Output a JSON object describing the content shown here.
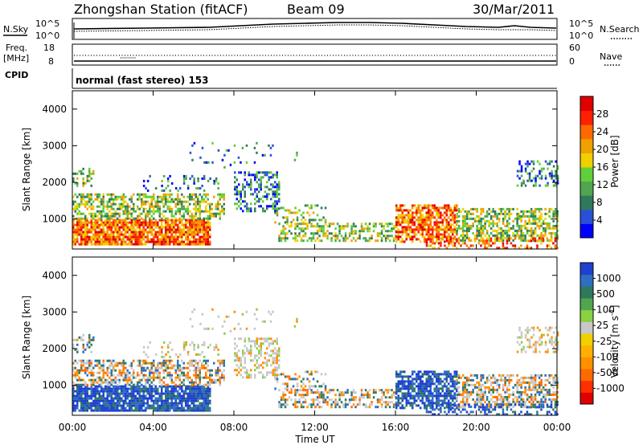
{
  "header": {
    "title": "Zhongshan Station (fitACF)",
    "beam": "Beam 09",
    "date": "30/Mar/2011"
  },
  "noise_panel": {
    "left_label": "N.Sky",
    "left_ticks": [
      "10^5",
      "10^0"
    ],
    "right_label": "N.Search",
    "right_ticks": [
      "10^5",
      "10^0"
    ]
  },
  "freq_panel": {
    "left_label_1": "Freq.",
    "left_label_2": "[MHz]",
    "left_ticks": [
      "18",
      "8"
    ],
    "right_label": "Nave",
    "right_ticks": [
      "60",
      "0"
    ]
  },
  "cpid": {
    "label": "CPID",
    "mode": "normal (fast stereo) 153"
  },
  "x_axis": {
    "label": "Time UT",
    "ticks": [
      "00:00",
      "04:00",
      "08:00",
      "12:00",
      "16:00",
      "20:00",
      "00:00"
    ]
  },
  "chart_data": [
    {
      "type": "heatmap",
      "quantity": "power",
      "ylabel": "Slant Range [km]",
      "ylim": [
        180,
        4500
      ],
      "yticks": [
        "4000",
        "3000",
        "2000",
        "1000"
      ],
      "colorbar_label": "Power [dB]",
      "colorbar_ticks": [
        "28",
        "24",
        "20",
        "16",
        "12",
        "8",
        "4"
      ],
      "colorbar_colors": [
        "#0000ff",
        "#2b50d8",
        "#2f7a5c",
        "#4fa64f",
        "#5fd03a",
        "#f0d000",
        "#f0a000",
        "#ff6a00",
        "#ff2000",
        "#e00000"
      ]
    },
    {
      "type": "heatmap",
      "quantity": "velocity",
      "ylabel": "Slant Range [km]",
      "ylim": [
        180,
        4500
      ],
      "yticks": [
        "4000",
        "3000",
        "2000",
        "1000"
      ],
      "colorbar_label": "Velocity [m s",
      "colorbar_label_sup": "-1",
      "colorbar_label_end": "]",
      "colorbar_ticks": [
        "1000",
        "500",
        "100",
        "25",
        "-25",
        "-100",
        "-500",
        "-1000"
      ],
      "colorbar_colors": [
        "#e00000",
        "#ff3000",
        "#ff6a00",
        "#ff9000",
        "#ffb000",
        "#f0d000",
        "#c8c8c8",
        "#8ad040",
        "#4fa64f",
        "#2f7a5c",
        "#2f6ec0",
        "#2040d0"
      ]
    }
  ]
}
